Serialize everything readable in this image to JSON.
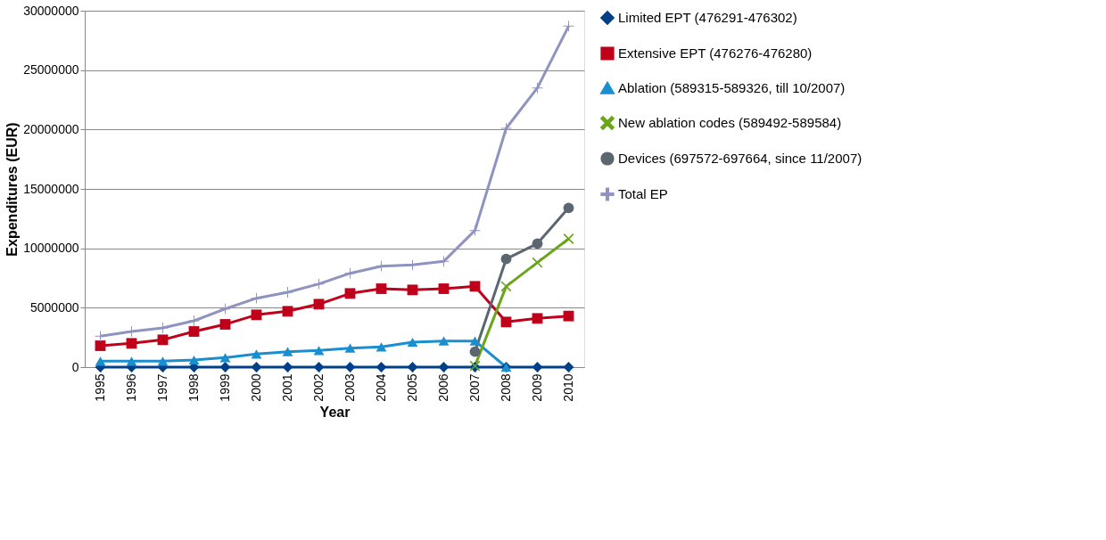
{
  "chart_data": {
    "type": "line",
    "xlabel": "Year",
    "ylabel": "Expenditures (EUR)",
    "categories": [
      "1995",
      "1996",
      "1997",
      "1998",
      "1999",
      "2000",
      "2001",
      "2002",
      "2003",
      "2004",
      "2005",
      "2006",
      "2007",
      "2008",
      "2009",
      "2010"
    ],
    "ylim": [
      0,
      30000000
    ],
    "yticks": [
      0,
      5000000,
      10000000,
      15000000,
      20000000,
      25000000,
      30000000
    ],
    "grid": "y",
    "legend": "right",
    "line_style": "solid",
    "series": [
      {
        "name": "Limited EPT (476291-476302)",
        "color": "#003f8a",
        "marker": "diamond",
        "values": [
          0,
          0,
          0,
          0,
          0,
          0,
          0,
          0,
          0,
          0,
          0,
          0,
          0,
          0,
          0,
          0
        ]
      },
      {
        "name": "Extensive EPT (476276-476280)",
        "color": "#c0001a",
        "marker": "square",
        "values": [
          1800000,
          2000000,
          2300000,
          3000000,
          3600000,
          4400000,
          4700000,
          5300000,
          6200000,
          6600000,
          6500000,
          6600000,
          6800000,
          3800000,
          4100000,
          4300000
        ]
      },
      {
        "name": "Ablation (589315-589326, till 10/2007)",
        "color": "#1a8fd0",
        "marker": "triangle",
        "values": [
          500000,
          500000,
          500000,
          600000,
          800000,
          1100000,
          1300000,
          1400000,
          1600000,
          1700000,
          2100000,
          2200000,
          2200000,
          0,
          null,
          null
        ]
      },
      {
        "name": "New ablation codes (589492-589584)",
        "color": "#6aa51a",
        "marker": "cross",
        "values": [
          null,
          null,
          null,
          null,
          null,
          null,
          null,
          null,
          null,
          null,
          null,
          null,
          100000,
          6800000,
          8800000,
          10800000
        ]
      },
      {
        "name": "Devices (697572-697664, since 11/2007)",
        "color": "#5c6670",
        "marker": "circle",
        "values": [
          null,
          null,
          null,
          null,
          null,
          null,
          null,
          null,
          null,
          null,
          null,
          null,
          1300000,
          9100000,
          10400000,
          13400000
        ]
      },
      {
        "name": "Total EP",
        "color": "#8e93c0",
        "marker": "plus",
        "values": [
          2600000,
          3000000,
          3300000,
          3900000,
          4900000,
          5800000,
          6300000,
          7000000,
          7900000,
          8500000,
          8600000,
          8900000,
          11500000,
          20100000,
          23500000,
          28700000
        ]
      }
    ]
  }
}
